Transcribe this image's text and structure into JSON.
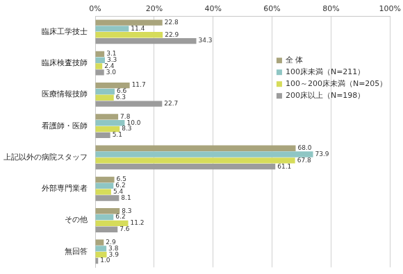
{
  "chart_data": {
    "type": "bar",
    "orientation": "horizontal",
    "categories": [
      "臨床工学技士",
      "臨床検査技師",
      "医療情報技師",
      "看護師・医師",
      "上記以外の病院スタッフ",
      "外部専門業者",
      "その他",
      "無回答"
    ],
    "series": [
      {
        "name": "全 体",
        "color": "#a9a47c",
        "values": [
          22.8,
          3.1,
          11.7,
          7.8,
          68.0,
          6.5,
          8.3,
          2.9
        ],
        "value_labels": [
          "22.8",
          "3.1",
          "11.7",
          "7.8",
          "68.0",
          "6.5",
          "8.3",
          "2.9"
        ]
      },
      {
        "name": "100床未満（N=211）",
        "color": "#8fc6c4",
        "values": [
          11.4,
          3.3,
          6.6,
          10.0,
          73.9,
          6.2,
          6.2,
          3.8
        ],
        "value_labels": [
          "11.4",
          "3.3",
          "6.6",
          "10.0",
          "73.9",
          "6.2",
          "6.2",
          "3.8"
        ]
      },
      {
        "name": "100～200床未満（N=205）",
        "color": "#d6dc5a",
        "values": [
          22.9,
          2.4,
          6.3,
          8.3,
          67.8,
          5.4,
          11.2,
          3.9
        ],
        "value_labels": [
          "22.9",
          "2.4",
          "6.3",
          "8.3",
          "67.8",
          "5.4",
          "11.2",
          "3.9"
        ]
      },
      {
        "name": "200床以上（N=198）",
        "color": "#9c9c9c",
        "values": [
          34.3,
          3.0,
          22.7,
          5.1,
          61.1,
          8.1,
          7.6,
          1.0
        ],
        "value_labels": [
          "34.3",
          "3.0",
          "22.7",
          "5.1",
          "61.1",
          "8.1",
          "7.6",
          "1.0"
        ]
      }
    ],
    "xlim": [
      0,
      100
    ],
    "xticks": [
      {
        "value": 0,
        "label": "0%"
      },
      {
        "value": 20,
        "label": "20%"
      },
      {
        "value": 40,
        "label": "40%"
      },
      {
        "value": 60,
        "label": "60%"
      },
      {
        "value": 80,
        "label": "80%"
      },
      {
        "value": 100,
        "label": "100%"
      }
    ],
    "grid": true,
    "legend": "right",
    "data_labels": true
  }
}
